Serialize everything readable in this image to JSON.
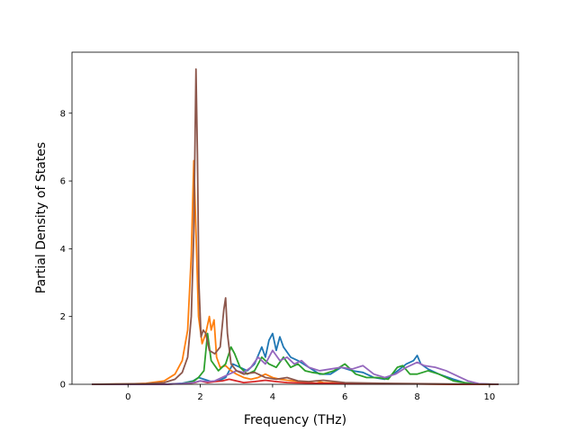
{
  "chart_data": {
    "type": "line",
    "title": "",
    "xlabel": "Frequency (THz)",
    "ylabel": "Partial Density of States",
    "xlim": [
      -1.55,
      10.8
    ],
    "ylim": [
      0,
      9.8
    ],
    "x_ticks": [
      "0",
      "2",
      "4",
      "6",
      "8",
      "10"
    ],
    "y_ticks": [
      "0",
      "2",
      "4",
      "6",
      "8"
    ],
    "grid": false,
    "legend": "none",
    "series": [
      {
        "color": "#1f77b4",
        "x": [
          -1.0,
          1.0,
          1.5,
          1.8,
          1.95,
          2.1,
          2.3,
          2.5,
          2.7,
          2.9,
          3.1,
          3.3,
          3.5,
          3.7,
          3.8,
          3.9,
          4.0,
          4.1,
          4.2,
          4.3,
          4.5,
          4.7,
          5.0,
          5.3,
          5.6,
          5.9,
          6.2,
          6.5,
          6.8,
          7.1,
          7.4,
          7.7,
          7.9,
          8.0,
          8.1,
          8.3,
          8.6,
          9.0,
          9.3,
          9.6,
          10.25
        ],
        "y": [
          0,
          0,
          0.03,
          0.1,
          0.2,
          0.15,
          0.08,
          0.1,
          0.2,
          0.6,
          0.5,
          0.4,
          0.6,
          1.1,
          0.8,
          1.3,
          1.5,
          1.0,
          1.4,
          1.1,
          0.8,
          0.7,
          0.5,
          0.3,
          0.3,
          0.5,
          0.4,
          0.35,
          0.2,
          0.15,
          0.35,
          0.6,
          0.7,
          0.85,
          0.6,
          0.45,
          0.3,
          0.15,
          0.05,
          0.01,
          0
        ]
      },
      {
        "color": "#ff7f0e",
        "x": [
          -1.0,
          0.0,
          0.5,
          1.0,
          1.3,
          1.5,
          1.65,
          1.75,
          1.82,
          1.88,
          1.95,
          2.05,
          2.15,
          2.25,
          2.3,
          2.38,
          2.45,
          2.55,
          2.7,
          2.85,
          3.0,
          3.2,
          3.4,
          3.6,
          3.8,
          4.0,
          4.2,
          4.4,
          4.6,
          4.8,
          5.0,
          5.2,
          5.4,
          6.0,
          7.0,
          8.0,
          9.0,
          10.25
        ],
        "y": [
          0,
          0.01,
          0.03,
          0.1,
          0.3,
          0.7,
          1.6,
          3.8,
          6.6,
          4.5,
          2.0,
          1.2,
          1.5,
          2.0,
          1.6,
          1.9,
          0.8,
          0.5,
          0.55,
          0.4,
          0.3,
          0.2,
          0.15,
          0.2,
          0.3,
          0.2,
          0.15,
          0.12,
          0.1,
          0.08,
          0.06,
          0.1,
          0.05,
          0.03,
          0.02,
          0.01,
          0,
          0
        ]
      },
      {
        "color": "#2ca02c",
        "x": [
          -1.0,
          1.0,
          1.5,
          1.8,
          1.95,
          2.1,
          2.2,
          2.3,
          2.5,
          2.7,
          2.85,
          2.95,
          3.1,
          3.3,
          3.5,
          3.7,
          3.9,
          4.1,
          4.3,
          4.5,
          4.7,
          4.9,
          5.1,
          5.4,
          5.7,
          6.0,
          6.3,
          6.6,
          6.9,
          7.2,
          7.45,
          7.6,
          7.8,
          8.0,
          8.3,
          8.6,
          9.0,
          9.3,
          9.6,
          10.25
        ],
        "y": [
          0,
          0,
          0.02,
          0.08,
          0.2,
          0.4,
          1.5,
          0.7,
          0.4,
          0.6,
          1.1,
          0.9,
          0.5,
          0.3,
          0.4,
          0.8,
          0.6,
          0.5,
          0.8,
          0.5,
          0.6,
          0.4,
          0.35,
          0.3,
          0.4,
          0.6,
          0.3,
          0.2,
          0.2,
          0.15,
          0.5,
          0.55,
          0.3,
          0.3,
          0.4,
          0.3,
          0.1,
          0.05,
          0.01,
          0
        ]
      },
      {
        "color": "#d62728",
        "x": [
          -1.0,
          1.0,
          1.6,
          1.85,
          2.0,
          2.2,
          2.4,
          2.6,
          2.8,
          3.0,
          3.2,
          3.5,
          3.8,
          4.1,
          4.4,
          4.8,
          5.2,
          5.6,
          6.0,
          7.0,
          8.0,
          9.0,
          10.25
        ],
        "y": [
          0,
          0,
          0.02,
          0.05,
          0.1,
          0.05,
          0.08,
          0.1,
          0.15,
          0.1,
          0.05,
          0.08,
          0.12,
          0.08,
          0.05,
          0.04,
          0.03,
          0.03,
          0.02,
          0.01,
          0.01,
          0,
          0
        ]
      },
      {
        "color": "#9467bd",
        "x": [
          -1.0,
          1.0,
          1.5,
          1.8,
          2.0,
          2.2,
          2.4,
          2.6,
          2.8,
          3.0,
          3.2,
          3.4,
          3.6,
          3.8,
          4.0,
          4.2,
          4.4,
          4.6,
          4.8,
          5.0,
          5.3,
          5.6,
          5.9,
          6.2,
          6.5,
          6.8,
          7.1,
          7.4,
          7.7,
          8.0,
          8.2,
          8.5,
          8.8,
          9.1,
          9.4,
          9.7,
          10.25
        ],
        "y": [
          0,
          0,
          0.02,
          0.05,
          0.1,
          0.08,
          0.1,
          0.2,
          0.3,
          0.4,
          0.35,
          0.5,
          0.8,
          0.6,
          1.0,
          0.7,
          0.8,
          0.6,
          0.7,
          0.5,
          0.4,
          0.45,
          0.5,
          0.45,
          0.55,
          0.3,
          0.2,
          0.3,
          0.5,
          0.65,
          0.55,
          0.5,
          0.4,
          0.25,
          0.1,
          0.02,
          0
        ]
      },
      {
        "color": "#8c564b",
        "x": [
          -1.0,
          0.5,
          1.0,
          1.3,
          1.5,
          1.65,
          1.75,
          1.82,
          1.88,
          1.92,
          1.96,
          2.02,
          2.08,
          2.15,
          2.25,
          2.4,
          2.55,
          2.65,
          2.7,
          2.75,
          2.85,
          3.0,
          3.2,
          3.5,
          3.8,
          4.1,
          4.4,
          4.7,
          5.0,
          5.4,
          6.0,
          7.0,
          8.0,
          9.0,
          10.25
        ],
        "y": [
          0,
          0.02,
          0.05,
          0.15,
          0.35,
          0.8,
          2.0,
          4.5,
          9.3,
          6.8,
          3.0,
          1.4,
          1.6,
          1.5,
          1.0,
          0.9,
          1.1,
          2.2,
          2.55,
          1.5,
          0.6,
          0.4,
          0.3,
          0.35,
          0.2,
          0.15,
          0.2,
          0.1,
          0.08,
          0.12,
          0.05,
          0.03,
          0.02,
          0.01,
          0
        ]
      }
    ]
  }
}
